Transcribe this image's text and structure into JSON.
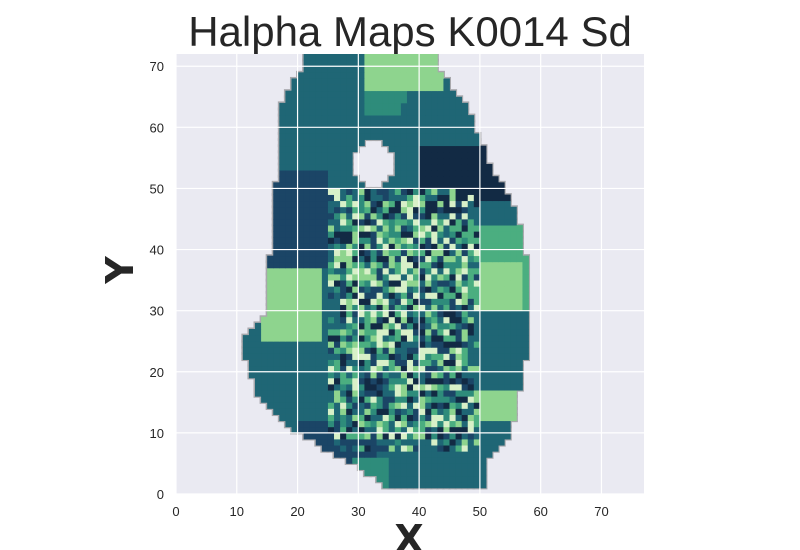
{
  "chart_data": {
    "type": "heatmap",
    "title": "Halpha Maps K0014 Sd",
    "xlabel": "X",
    "ylabel": "Y",
    "xlim": [
      0,
      77
    ],
    "ylim": [
      0,
      72
    ],
    "xticks": [
      0,
      10,
      20,
      30,
      40,
      50,
      60,
      70
    ],
    "yticks": [
      0,
      10,
      20,
      30,
      40,
      50,
      60,
      70
    ],
    "grid": true,
    "colormap": [
      "#122a44",
      "#1b4566",
      "#1f6675",
      "#2e8c7b",
      "#4bae80",
      "#8ed48e",
      "#d8f0c8"
    ],
    "background": "#eaeaf2",
    "region_rows": [
      {
        "y": 1,
        "x0": 35,
        "x1": 51
      },
      {
        "y": 5,
        "x0": 29,
        "x1": 51
      },
      {
        "y": 10,
        "x0": 20,
        "x1": 55
      },
      {
        "y": 15,
        "x0": 14,
        "x1": 56
      },
      {
        "y": 20,
        "x0": 12,
        "x1": 57
      },
      {
        "y": 25,
        "x0": 11,
        "x1": 58
      },
      {
        "y": 30,
        "x0": 15,
        "x1": 58
      },
      {
        "y": 36,
        "x0": 15,
        "x1": 58
      },
      {
        "y": 42,
        "x0": 16,
        "x1": 57
      },
      {
        "y": 48,
        "x0": 16,
        "x1": 55
      },
      {
        "y": 53,
        "x0": 17,
        "x1": 52
      },
      {
        "y": 58,
        "x0": 17,
        "x1": 50
      },
      {
        "y": 63,
        "x0": 17,
        "x1": 48
      },
      {
        "y": 67,
        "x0": 19,
        "x1": 45
      },
      {
        "y": 70,
        "x0": 21,
        "x1": 43
      },
      {
        "y": 72,
        "x0": 21,
        "x1": 43
      }
    ],
    "cutout": {
      "cx": 32.5,
      "cy": 54,
      "r": 3.8
    },
    "zones": [
      {
        "x0": 19,
        "y0": 56,
        "x1": 31,
        "y1": 72,
        "level": 2
      },
      {
        "x0": 31,
        "y0": 62,
        "x1": 38,
        "y1": 72,
        "level": 3
      },
      {
        "x0": 31,
        "y0": 66,
        "x1": 44,
        "y1": 72,
        "level": 5
      },
      {
        "x0": 37,
        "y0": 56,
        "x1": 50,
        "y1": 64,
        "level": 2
      },
      {
        "x0": 40,
        "y0": 48,
        "x1": 55,
        "y1": 57,
        "level": 0
      },
      {
        "x0": 15,
        "y0": 37,
        "x1": 25,
        "y1": 53,
        "level": 1
      },
      {
        "x0": 44,
        "y0": 30,
        "x1": 58,
        "y1": 44,
        "level": 4
      },
      {
        "x0": 50,
        "y0": 30,
        "x1": 57,
        "y1": 38,
        "level": 5
      },
      {
        "x0": 14,
        "y0": 25,
        "x1": 24,
        "y1": 37,
        "level": 5
      },
      {
        "x0": 11,
        "y0": 18,
        "x1": 25,
        "y1": 25,
        "level": 2
      },
      {
        "x0": 48,
        "y0": 17,
        "x1": 58,
        "y1": 25,
        "level": 2
      },
      {
        "x0": 46,
        "y0": 12,
        "x1": 56,
        "y1": 17,
        "level": 5
      },
      {
        "x0": 20,
        "y0": 5,
        "x1": 33,
        "y1": 12,
        "level": 1
      },
      {
        "x0": 33,
        "y0": 1,
        "x1": 51,
        "y1": 6,
        "level": 2
      },
      {
        "x0": 29,
        "y0": 1,
        "x1": 35,
        "y1": 6,
        "level": 3
      }
    ],
    "core": {
      "x0": 25,
      "y0": 7,
      "x1": 50,
      "y1": 50
    }
  }
}
